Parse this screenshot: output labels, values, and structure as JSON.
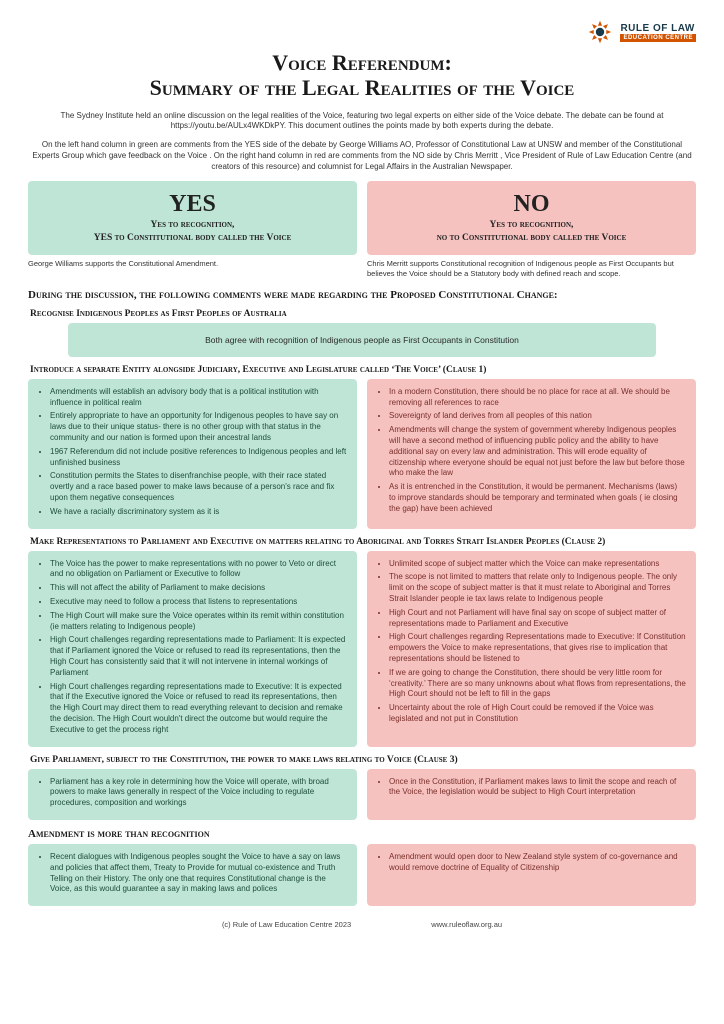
{
  "logo": {
    "line1": "RULE OF LAW",
    "line2": "EDUCATION CENTRE"
  },
  "title_line1": "Voice Referendum:",
  "title_line2": "Summary of the Legal Realities of the Voice",
  "intro1": "The Sydney Institute held an online discussion on the legal realities of the Voice, featuring two legal experts on either side of the Voice debate. The debate can be found at https://youtu.be/AULx4WKDkPY.  This document outlines the points made by both experts during the debate.",
  "intro2": "On the left hand column in green are comments from the YES side of the debate by George Williams AO, Professor of Constitutional Law at UNSW and member of the Constitutional Experts Group which gave feedback on the Voice . On the right hand column in red are comments from the NO side by Chris Merritt , Vice President of Rule of Law Education Centre (and creators of  this resource) and columnist for Legal Affairs in the Australian Newspaper.",
  "yes": {
    "big": "YES",
    "sub1": "Yes to recognition,",
    "sub2": "YES to Constitutional body called the Voice",
    "support": "George Williams supports the Constitutional Amendment."
  },
  "no": {
    "big": "NO",
    "sub1": "Yes to recognition,",
    "sub2": "no to Constitutional body called the Voice",
    "support": "Chris Merritt supports Constitutional recognition of Indigenous people as First Occupants but believes the Voice should be a Statutory body  with defined reach and scope."
  },
  "section_heading": "During the discussion, the following comments were made regarding the Proposed Constitutional Change:",
  "s1": {
    "heading": "Recognise Indigenous Peoples as First Peoples of Australia",
    "agree": "Both agree with recognition of Indigenous people as First Occupants in Constitution"
  },
  "s2": {
    "heading": "Introduce a  separate Entity alongside Judiciary, Executive and Legislature called ‘The Voice’  (Clause 1)",
    "yes": [
      "Amendments will establish an advisory body that is a political institution with influence in political realm",
      "Entirely appropriate to have an opportunity for Indigenous peoples to have say on laws due to their unique status- there is no other group with that status in the community and our nation is formed upon their ancestral lands",
      "1967 Referendum did not include positive references to Indigenous peoples and left unfinished business",
      "Constitution permits the States to disenfranchise people, with their race stated overtly and a race based power to make laws because of a person's race and fix upon them negative consequences",
      "We have a racially discriminatory system as it is"
    ],
    "no": [
      "In a modern Constitution, there should be no place for race at all. We should be removing all references to race",
      "Sovereignty of land derives from all peoples of this nation",
      "Amendments will change the system of government whereby Indigenous peoples will have a second method of influencing public policy and the ability to have additional say on every law and administration. This will erode equality of citizenship where everyone should be equal not just before the law but before those who make the law",
      "As it is entrenched in the Constitution, it would be permanent. Mechanisms (laws) to improve standards should be temporary and terminated when goals ( ie closing the gap) have been achieved"
    ]
  },
  "s3": {
    "heading": "Make Representations to Parliament and Executive on matters relating to Aboriginal and Torres Strait Islander Peoples (Clause 2)",
    "yes": [
      "The Voice has the power to make representations with no power to Veto or direct and no obligation on Parliament or Executive to follow",
      "This will not affect the ability of Parliament to make decisions",
      "Executive may need to follow a process that listens to representations",
      "The High Court will make sure the Voice operates within its remit within constitution (ie matters relating to Indigenous people)",
      "High Court challenges regarding representations made to Parliament: It is expected that if Parliament ignored the Voice or refused to read its representations, then the High Court has consistently said that it will not intervene in internal workings of Parliament",
      "High Court challenges regarding representations made to Executive: It is expected that if the Executive ignored the Voice or refused to read its representations, then the High Court may direct them to read everything relevant to decision and remake the decision. The High Court  wouldn't direct the outcome but would require the Executive to get the process right"
    ],
    "no": [
      "Unlimited scope of subject matter which the Voice can make representations",
      "The scope is not limited to matters that relate only to Indigenous people. The only limit on the scope of subject matter is that it must relate to Aboriginal and Torres Strait Islander people ie tax laws relate to Indigenous people",
      "High Court and not Parliament will have final say on scope of subject matter  of representations made to Parliament and Executive",
      "High Court challenges regarding Representations made to Executive: If Constitution empowers the Voice to make representations, that gives rise to implication that representations should be listened to",
      "If we are going to change the Constitution, there should be very little room for ‘creativity.’ There are so many unknowns about what flows from representations,  the High Court should not be left to fill in the gaps",
      "Uncertainty about the role of High Court could be removed if the Voice was legislated and not put in Constitution"
    ]
  },
  "s4": {
    "heading": "Give Parliament, subject to the  Constitution, the power to make laws relating to Voice  (Clause 3)",
    "yes": [
      "Parliament has a key role in determining how the Voice will operate, with broad powers to make laws generally in respect of the Voice including  to regulate procedures, composition and workings"
    ],
    "no": [
      "Once in the Constitution, if Parliament makes laws to limit the  scope and reach of the Voice, the legislation would be subject to High Court interpretation"
    ]
  },
  "s5": {
    "heading": "Amendment is more than recognition",
    "yes": [
      "Recent dialogues with Indigenous peoples sought the Voice to have a say on laws and policies that affect them, Treaty to  Provide for mutual co-existence and Truth Telling on their History.  The only one that requires Constitutional change is the Voice, as this would guarantee a say in making laws and polices"
    ],
    "no": [
      "Amendment would open door to New Zealand style system of co-governance and would remove doctrine of Equality of Citizenship"
    ]
  },
  "footer": {
    "copyright": "(c) Rule of Law Education Centre 2023",
    "url": "www.ruleoflaw.org.au"
  },
  "colors": {
    "yes_bg": "#bfe5d6",
    "no_bg": "#f5c2c0",
    "accent": "#d35400"
  }
}
